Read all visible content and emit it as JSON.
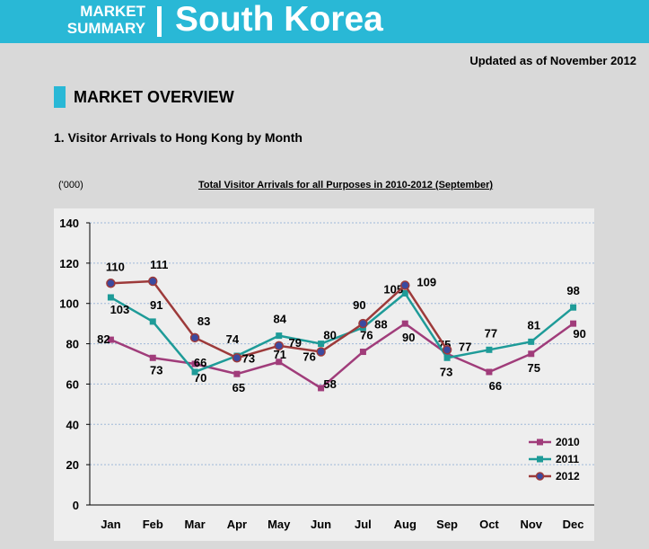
{
  "header": {
    "brand_line1": "MARKET",
    "brand_line2": "SUMMARY",
    "country": "South Korea"
  },
  "updated": "Updated as of November 2012",
  "section": {
    "title": "MARKET OVERVIEW"
  },
  "subsection": {
    "title": "1. Visitor Arrivals to Hong Kong by Month"
  },
  "colors": {
    "banner": "#29b8d6",
    "s2010": "#a03c7a",
    "s2011": "#1e9b98",
    "s2012": "#9d3a3a"
  },
  "chart_data": {
    "type": "line",
    "title": "Total Visitor Arrivals for all Purposes in 2010-2012 (September)",
    "unit_label": "('000)",
    "categories": [
      "Jan",
      "Feb",
      "Mar",
      "Apr",
      "May",
      "Jun",
      "Jul",
      "Aug",
      "Sep",
      "Oct",
      "Nov",
      "Dec"
    ],
    "ylim": [
      0,
      140
    ],
    "yticks": [
      0,
      20,
      40,
      60,
      80,
      100,
      120,
      140
    ],
    "grid": true,
    "legend_position": "bottom-right",
    "series": [
      {
        "name": "2010",
        "color": "#a03c7a",
        "marker": "square",
        "values": [
          82,
          73,
          70,
          65,
          71,
          58,
          76,
          90,
          75,
          66,
          75,
          90
        ]
      },
      {
        "name": "2011",
        "color": "#1e9b98",
        "marker": "square",
        "values": [
          103,
          91,
          66,
          74,
          84,
          80,
          88,
          105,
          73,
          77,
          81,
          98
        ]
      },
      {
        "name": "2012",
        "color": "#9d3a3a",
        "marker": "circle",
        "values": [
          110,
          111,
          83,
          73,
          79,
          76,
          90,
          109,
          77,
          null,
          null,
          null
        ]
      }
    ]
  }
}
